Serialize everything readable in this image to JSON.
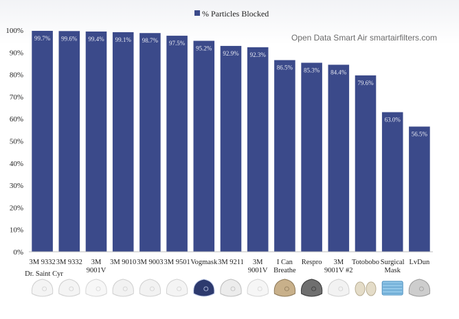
{
  "chart_data": {
    "type": "bar",
    "categories": [
      "3M 9332",
      "3M 9332",
      "3M 9001V",
      "3M 9010",
      "3M 9003",
      "3M 9501",
      "Vogmask",
      "3M 9211",
      "3M 9001V",
      "I Can Breathe",
      "Respro",
      "3M 9001V #2",
      "Totobobo",
      "Surgical Mask",
      "LvDun"
    ],
    "category_lines": [
      [
        "3M 9332"
      ],
      [
        "3M 9332"
      ],
      [
        "3M",
        "9001V"
      ],
      [
        "3M 9010"
      ],
      [
        "3M 9003"
      ],
      [
        "3M 9501"
      ],
      [
        "Vogmask"
      ],
      [
        "3M 9211"
      ],
      [
        "3M",
        "9001V"
      ],
      [
        "I Can",
        "Breathe"
      ],
      [
        "Respro"
      ],
      [
        "3M",
        "9001V #2"
      ],
      [
        "Totobobo"
      ],
      [
        "Surgical",
        "Mask"
      ],
      [
        "LvDun"
      ]
    ],
    "series": [
      {
        "name": "% Particles Blocked",
        "values": [
          99.7,
          99.6,
          99.4,
          99.1,
          98.7,
          97.5,
          95.2,
          92.9,
          92.3,
          86.5,
          85.3,
          84.4,
          79.6,
          63.0,
          56.5
        ],
        "labels": [
          "99.7%",
          "99.6%",
          "99.4%",
          "99.1%",
          "98.7%",
          "97.5%",
          "95.2%",
          "92.9%",
          "92.3%",
          "86.5%",
          "85.3%",
          "84.4%",
          "79.6%",
          "63.0%",
          "56.5%"
        ]
      }
    ],
    "y_ticks": [
      "0%",
      "10%",
      "20%",
      "30%",
      "40%",
      "50%",
      "60%",
      "70%",
      "80%",
      "90%",
      "100%"
    ],
    "ylim": [
      0,
      100
    ],
    "legend": "top-center",
    "grid": false,
    "annotation": "Open Data Smart Air smartairfilters.com",
    "subtitle_first_bar": "Dr. Saint Cyr",
    "bar_color": "#3b4a8a"
  }
}
